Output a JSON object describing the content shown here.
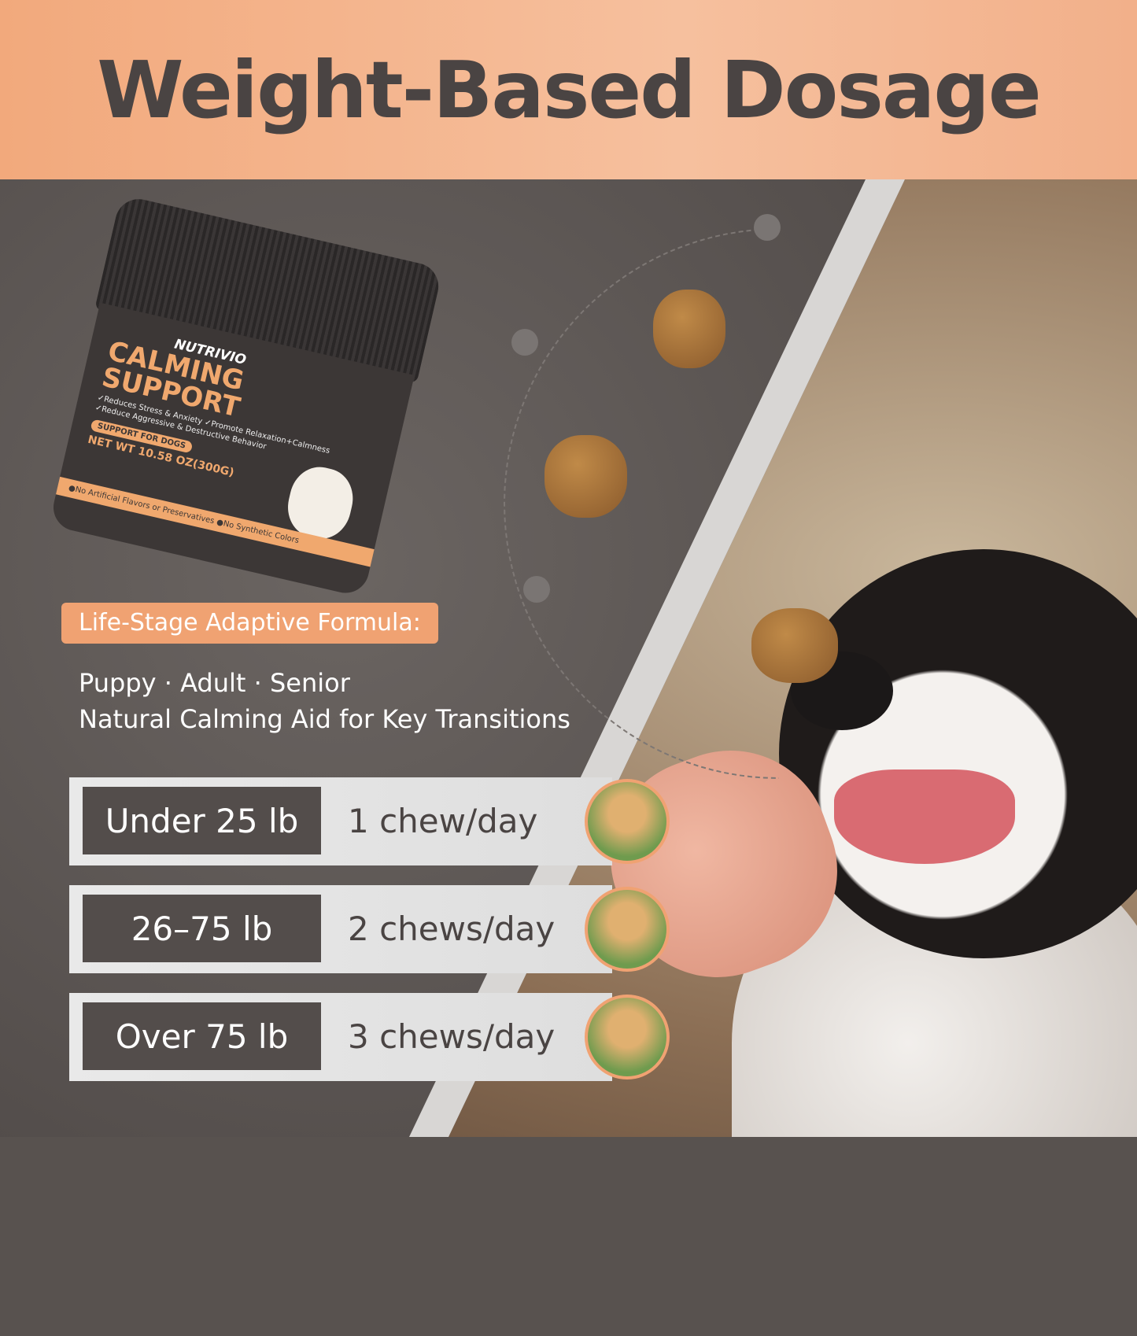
{
  "title": "Weight-Based Dosage",
  "jar": {
    "brand": "NUTRIVIO",
    "product": "CALMING SUPPORT",
    "claims": [
      "✓Reduces Stress & Anxiety",
      "✓Promote Relaxation+Calmness",
      "✓Reduce Aggressive & Destructive Behavior"
    ],
    "badge": "SUPPORT FOR DOGS",
    "net_weight": "NET WT 10.58 OZ(300G)",
    "footer": "●No Artificial Flavors or Preservatives ●No Synthetic Colors"
  },
  "formula_label": "Life-Stage Adaptive Formula:",
  "stages": "Puppy · Adult · Senior",
  "stages_sub": "Natural Calming Aid for Key Transitions",
  "dosage": [
    {
      "weight": "Under 25 lb",
      "dose": "1 chew/day"
    },
    {
      "weight": "26–75 lb",
      "dose": "2 chews/day"
    },
    {
      "weight": "Over 75 lb",
      "dose": "3 chews/day"
    }
  ],
  "colors": {
    "accent": "#f0a272",
    "dark": "#534d4b",
    "title": "#4a4443"
  }
}
